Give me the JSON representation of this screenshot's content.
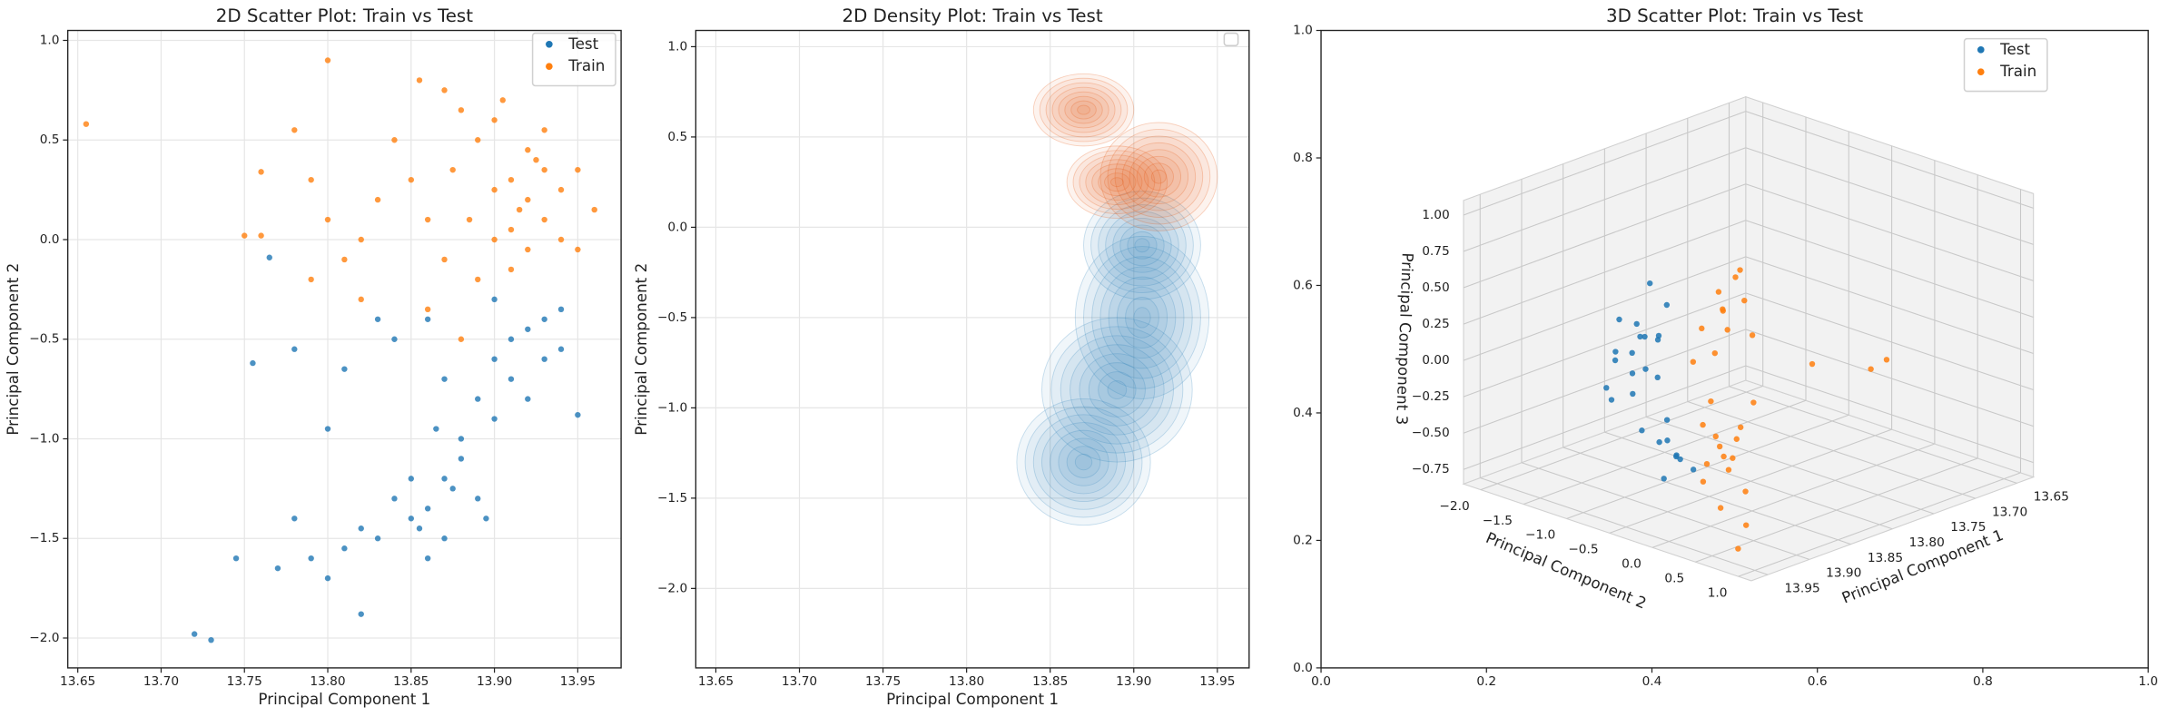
{
  "chart_data": [
    {
      "type": "scatter",
      "title": "2D Scatter Plot: Train vs Test",
      "xlabel": "Principal Component 1",
      "ylabel": "Principal Component 2",
      "xlim": [
        13.644,
        13.976
      ],
      "ylim": [
        -2.15,
        1.05
      ],
      "xticks": [
        13.65,
        {
          "value": 13.7,
          "label": "13.70"
        },
        13.75,
        {
          "value": 13.8,
          "label": "13.80"
        },
        13.85,
        {
          "value": 13.9,
          "label": "13.90"
        },
        13.95
      ],
      "yticks": [
        {
          "value": 1,
          "label": "1.0"
        },
        0.5,
        {
          "value": 0,
          "label": "0.0"
        },
        {
          "value": -0.5,
          "label": "−0.5"
        },
        {
          "value": -1,
          "label": "−1.0"
        },
        {
          "value": -1.5,
          "label": "−1.5"
        },
        {
          "value": -2,
          "label": "−2.0"
        }
      ],
      "grid": true,
      "legend": "upper right",
      "series": [
        {
          "name": "Test",
          "color": "#1f77b4",
          "x": [
            13.88,
            13.87,
            13.86,
            13.85,
            13.87,
            13.84,
            13.89,
            13.9,
            13.91,
            13.92,
            13.93,
            13.94,
            13.93,
            13.9,
            13.88,
            13.86,
            13.83,
            13.85,
            13.89,
            13.91,
            13.92,
            13.87,
            13.86,
            13.84,
            13.82,
            13.81,
            13.8,
            13.82,
            13.79,
            13.78,
            13.77,
            13.745,
            13.72,
            13.73,
            13.755,
            13.8,
            13.81,
            13.83,
            13.95,
            13.94,
            13.895,
            13.875,
            13.865,
            13.855,
            13.9,
            13.765,
            13.78
          ],
          "values": [
            -1.0,
            -1.2,
            -1.35,
            -1.4,
            -1.5,
            -1.3,
            -0.8,
            -0.6,
            -0.5,
            -0.45,
            -0.4,
            -0.35,
            -0.6,
            -0.9,
            -1.1,
            -1.6,
            -1.5,
            -1.2,
            -1.3,
            -0.7,
            -0.8,
            -0.7,
            -0.4,
            -0.5,
            -1.45,
            -1.55,
            -1.7,
            -1.88,
            -1.6,
            -1.4,
            -1.65,
            -1.6,
            -1.98,
            -2.01,
            -0.62,
            -0.95,
            -0.65,
            -0.4,
            -0.88,
            -0.55,
            -1.4,
            -1.25,
            -0.95,
            -1.45,
            -0.3,
            -0.09,
            -0.55
          ]
        },
        {
          "name": "Train",
          "color": "#ff7f0e",
          "x": [
            13.92,
            13.91,
            13.93,
            13.9,
            13.94,
            13.92,
            13.89,
            13.88,
            13.87,
            13.9,
            13.93,
            13.95,
            13.96,
            13.95,
            13.91,
            13.89,
            13.87,
            13.86,
            13.85,
            13.855,
            13.84,
            13.83,
            13.82,
            13.81,
            13.8,
            13.79,
            13.78,
            13.8,
            13.655,
            13.76,
            13.75,
            13.76,
            13.79,
            13.82,
            13.86,
            13.88,
            13.91,
            13.93,
            13.92,
            13.9,
            13.94,
            13.915,
            13.925,
            13.885,
            13.875,
            13.905
          ],
          "values": [
            0.2,
            0.3,
            0.1,
            0.0,
            0.25,
            0.45,
            0.5,
            0.65,
            0.75,
            0.6,
            0.55,
            0.35,
            0.15,
            -0.05,
            -0.15,
            -0.2,
            -0.1,
            0.1,
            0.3,
            0.8,
            0.5,
            0.2,
            0.0,
            -0.1,
            0.1,
            0.3,
            0.55,
            0.9,
            0.58,
            0.34,
            0.02,
            0.02,
            -0.2,
            -0.3,
            -0.35,
            -0.5,
            0.05,
            0.35,
            -0.05,
            0.25,
            0.0,
            0.15,
            0.4,
            0.1,
            0.35,
            0.7
          ]
        }
      ]
    },
    {
      "type": "density",
      "title": "2D Density Plot: Train vs Test",
      "xlabel": "Principal Component 1",
      "ylabel": "Principal Component 2",
      "xlim": [
        13.638,
        13.969
      ],
      "ylim": [
        -2.44,
        1.09
      ],
      "xticks": [
        13.65,
        {
          "value": 13.7,
          "label": "13.70"
        },
        13.75,
        {
          "value": 13.8,
          "label": "13.80"
        },
        13.85,
        {
          "value": 13.9,
          "label": "13.90"
        },
        13.95
      ],
      "yticks": [
        {
          "value": 1,
          "label": "1.0"
        },
        0.5,
        {
          "value": 0,
          "label": "0.0"
        },
        {
          "value": -0.5,
          "label": "−0.5"
        },
        {
          "value": -1,
          "label": "−1.0"
        },
        {
          "value": -1.5,
          "label": "−1.5"
        },
        {
          "value": -2,
          "label": "−2.0"
        }
      ],
      "grid": true,
      "legend": "upper right",
      "series": [
        {
          "color": "#3182bd",
          "blobs": [
            {
              "x": 13.905,
              "y": -0.5,
              "rx": 0.04,
              "ry": 0.45
            },
            {
              "x": 13.89,
              "y": -0.9,
              "rx": 0.045,
              "ry": 0.4
            },
            {
              "x": 13.87,
              "y": -1.3,
              "rx": 0.04,
              "ry": 0.35
            },
            {
              "x": 13.905,
              "y": -0.1,
              "rx": 0.035,
              "ry": 0.3
            }
          ]
        },
        {
          "color": "#e6550d",
          "blobs": [
            {
              "x": 13.915,
              "y": 0.28,
              "rx": 0.035,
              "ry": 0.3
            },
            {
              "x": 13.89,
              "y": 0.25,
              "rx": 0.03,
              "ry": 0.2
            },
            {
              "x": 13.87,
              "y": 0.65,
              "rx": 0.03,
              "ry": 0.2
            }
          ]
        }
      ]
    },
    {
      "type": "scatter3d",
      "title": "3D Scatter Plot: Train vs Test",
      "xlim": [
        0,
        1
      ],
      "ylim": [
        0,
        1
      ],
      "xticks": [
        {
          "value": 0,
          "label": "0.0"
        },
        0.2,
        0.4,
        0.6,
        0.8,
        {
          "value": 1,
          "label": "1.0"
        }
      ],
      "yticks": [
        {
          "value": 0,
          "label": "0.0"
        },
        0.2,
        0.4,
        0.6,
        0.8,
        {
          "value": 1,
          "label": "1.0"
        }
      ],
      "legend": "upper right",
      "axes3d": {
        "xlabel": "Principal Component 1",
        "ylabel": "Principal Component 2",
        "zlabel": "Principal Component 3",
        "xlim": [
          13.63,
          13.97
        ],
        "ylim": [
          -2.2,
          1.15
        ],
        "zlim": [
          -0.85,
          1.1
        ],
        "xticks": [
          13.65,
          {
            "value": 13.7,
            "label": "13.70"
          },
          13.75,
          {
            "value": 13.8,
            "label": "13.80"
          },
          13.85,
          {
            "value": 13.9,
            "label": "13.90"
          },
          13.95
        ],
        "yticks": [
          {
            "value": -2,
            "label": "−2.0"
          },
          {
            "value": -1.5,
            "label": "−1.5"
          },
          {
            "value": -1,
            "label": "−1.0"
          },
          {
            "value": -0.5,
            "label": "−0.5"
          },
          {
            "value": 0,
            "label": "0.0"
          },
          0.5,
          {
            "value": 1,
            "label": "1.0"
          }
        ],
        "zticks": [
          {
            "value": 1,
            "label": "1.00"
          },
          0.75,
          {
            "value": 0.5,
            "label": "0.50"
          },
          0.25,
          {
            "value": 0,
            "label": "0.00"
          },
          {
            "value": -0.25,
            "label": "−0.25"
          },
          {
            "value": -0.5,
            "label": "−0.50"
          },
          {
            "value": -0.75,
            "label": "−0.75"
          }
        ],
        "grid": true
      },
      "series": [
        {
          "name": "Test",
          "color": "#1f77b4",
          "x": [
            13.87,
            13.86,
            13.88,
            13.85,
            13.87,
            13.86,
            13.88,
            13.85,
            13.87,
            13.89,
            13.86,
            13.88,
            13.9,
            13.91,
            13.89,
            13.9,
            13.91,
            13.92,
            13.89,
            13.88,
            13.87,
            13.88,
            13.89,
            13.86,
            13.84,
            13.9
          ],
          "y": [
            -1.2,
            -1.3,
            -1.1,
            -1.25,
            -1.4,
            -1.0,
            -1.3,
            -1.1,
            -1.15,
            -1.25,
            -1.45,
            -0.95,
            -0.4,
            -0.3,
            -0.45,
            -0.2,
            -0.5,
            -0.35,
            -0.6,
            -0.7,
            -0.8,
            -0.9,
            -0.7,
            -1.6,
            -1.4,
            -0.8
          ],
          "z": [
            -0.1,
            0.0,
            -0.2,
            0.1,
            -0.05,
            0.15,
            0.05,
            -0.15,
            0.25,
            -0.25,
            0.2,
            0.0,
            -0.45,
            -0.4,
            -0.5,
            -0.5,
            -0.35,
            -0.55,
            -0.4,
            -0.3,
            0.45,
            0.6,
            0.3,
            -0.3,
            0.05,
            -0.35
          ]
        },
        {
          "name": "Train",
          "color": "#ff7f0e",
          "x": [
            13.885,
            13.88,
            13.89,
            13.87,
            13.89,
            13.88,
            13.9,
            13.87,
            13.88,
            13.86,
            13.92,
            13.93,
            13.91,
            13.92,
            13.94,
            13.93,
            13.91,
            13.92,
            13.9,
            13.93,
            13.95,
            13.96,
            13.94,
            13.8,
            13.75,
            13.85,
            13.9,
            13.89,
            13.91,
            13.92
          ],
          "y": [
            0.0,
            -0.1,
            0.1,
            0.0,
            -0.2,
            0.15,
            0.05,
            -0.15,
            0.2,
            0.1,
            0.3,
            0.35,
            0.25,
            0.45,
            0.3,
            0.2,
            0.4,
            0.15,
            0.35,
            0.5,
            0.6,
            0.9,
            0.8,
            0.9,
            0.6,
            0.7,
            0.5,
            -0.3,
            0.1,
            0.6
          ],
          "z": [
            0.6,
            0.7,
            0.5,
            0.8,
            0.45,
            0.9,
            0.35,
            0.55,
            0.7,
            0.4,
            -0.2,
            -0.1,
            -0.3,
            -0.25,
            -0.4,
            -0.05,
            -0.15,
            -0.35,
            -0.1,
            -0.3,
            -0.5,
            -0.7,
            -0.6,
            0.2,
            0.1,
            0.3,
            0.1,
            0.2,
            0.05,
            -0.45
          ]
        }
      ]
    }
  ]
}
